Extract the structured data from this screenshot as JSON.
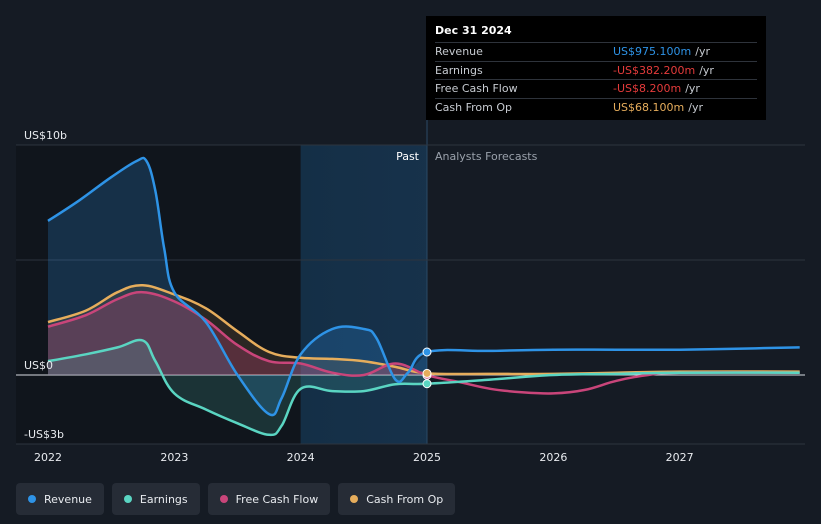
{
  "chart_data": {
    "type": "area",
    "unit": "US$b",
    "ylim": [
      -3,
      10
    ],
    "xlim": [
      2021.8,
      2027.95
    ],
    "y_tick_labels": [
      {
        "value": 10,
        "label": "US$10b"
      },
      {
        "value": 0,
        "label": "US$0"
      },
      {
        "value": -3,
        "label": "-US$3b"
      }
    ],
    "x_ticks": [
      2022,
      2023,
      2024,
      2025,
      2026,
      2027
    ],
    "x_tick_labels": [
      "2022",
      "2023",
      "2024",
      "2025",
      "2026",
      "2027"
    ],
    "past_region": {
      "start": 2024.0,
      "end": 2025.0,
      "label": "Past"
    },
    "forecast_label": "Analysts Forecasts",
    "series": [
      {
        "name": "Revenue",
        "color": "#2e93e6",
        "points": [
          [
            2022.0,
            6.7
          ],
          [
            2022.25,
            7.6
          ],
          [
            2022.5,
            8.6
          ],
          [
            2022.7,
            9.3
          ],
          [
            2022.78,
            9.3
          ],
          [
            2022.85,
            8.0
          ],
          [
            2022.92,
            5.5
          ],
          [
            2023.0,
            3.6
          ],
          [
            2023.25,
            2.3
          ],
          [
            2023.5,
            0.0
          ],
          [
            2023.75,
            -1.7
          ],
          [
            2023.85,
            -1.0
          ],
          [
            2024.0,
            0.9
          ],
          [
            2024.25,
            2.0
          ],
          [
            2024.5,
            2.0
          ],
          [
            2024.6,
            1.6
          ],
          [
            2024.75,
            -0.2
          ],
          [
            2024.85,
            0.1
          ],
          [
            2025.0,
            1.0
          ],
          [
            2025.5,
            1.05
          ],
          [
            2026.0,
            1.1
          ],
          [
            2026.5,
            1.1
          ],
          [
            2027.0,
            1.1
          ],
          [
            2027.5,
            1.15
          ],
          [
            2027.95,
            1.2
          ]
        ]
      },
      {
        "name": "Earnings",
        "color": "#5ad5c2",
        "points": [
          [
            2022.0,
            0.6
          ],
          [
            2022.3,
            0.9
          ],
          [
            2022.55,
            1.2
          ],
          [
            2022.75,
            1.5
          ],
          [
            2022.85,
            0.6
          ],
          [
            2023.0,
            -0.8
          ],
          [
            2023.25,
            -1.5
          ],
          [
            2023.5,
            -2.1
          ],
          [
            2023.75,
            -2.6
          ],
          [
            2023.85,
            -2.2
          ],
          [
            2024.0,
            -0.6
          ],
          [
            2024.25,
            -0.7
          ],
          [
            2024.5,
            -0.7
          ],
          [
            2024.75,
            -0.4
          ],
          [
            2025.0,
            -0.38
          ],
          [
            2025.5,
            -0.2
          ],
          [
            2026.0,
            0.0
          ],
          [
            2026.5,
            0.05
          ],
          [
            2027.0,
            0.1
          ],
          [
            2027.95,
            0.1
          ]
        ]
      },
      {
        "name": "Free Cash Flow",
        "color": "#c9457a",
        "points": [
          [
            2022.0,
            2.1
          ],
          [
            2022.3,
            2.6
          ],
          [
            2022.55,
            3.3
          ],
          [
            2022.75,
            3.6
          ],
          [
            2023.0,
            3.2
          ],
          [
            2023.25,
            2.4
          ],
          [
            2023.5,
            1.3
          ],
          [
            2023.75,
            0.6
          ],
          [
            2024.0,
            0.5
          ],
          [
            2024.25,
            0.1
          ],
          [
            2024.5,
            0.0
          ],
          [
            2024.75,
            0.5
          ],
          [
            2025.0,
            -0.01
          ],
          [
            2025.25,
            -0.3
          ],
          [
            2025.5,
            -0.6
          ],
          [
            2025.75,
            -0.75
          ],
          [
            2026.0,
            -0.8
          ],
          [
            2026.25,
            -0.65
          ],
          [
            2026.5,
            -0.25
          ],
          [
            2026.75,
            0.0
          ],
          [
            2027.0,
            0.1
          ],
          [
            2027.95,
            0.1
          ]
        ]
      },
      {
        "name": "Cash From Op",
        "color": "#e6ad5c",
        "points": [
          [
            2022.0,
            2.3
          ],
          [
            2022.3,
            2.8
          ],
          [
            2022.55,
            3.6
          ],
          [
            2022.75,
            3.9
          ],
          [
            2023.0,
            3.5
          ],
          [
            2023.25,
            2.9
          ],
          [
            2023.5,
            1.9
          ],
          [
            2023.75,
            1.0
          ],
          [
            2024.0,
            0.75
          ],
          [
            2024.25,
            0.7
          ],
          [
            2024.5,
            0.6
          ],
          [
            2024.75,
            0.35
          ],
          [
            2025.0,
            0.07
          ],
          [
            2025.5,
            0.05
          ],
          [
            2026.0,
            0.05
          ],
          [
            2026.5,
            0.1
          ],
          [
            2027.0,
            0.15
          ],
          [
            2027.95,
            0.15
          ]
        ]
      }
    ]
  },
  "tooltip": {
    "date": "Dec 31 2024",
    "rows": [
      {
        "label": "Revenue",
        "value": "US$975.100m",
        "unit": "/yr",
        "color": "#2e93e6"
      },
      {
        "label": "Earnings",
        "value": "-US$382.200m",
        "unit": "/yr",
        "color": "#e53b3b"
      },
      {
        "label": "Free Cash Flow",
        "value": "-US$8.200m",
        "unit": "/yr",
        "color": "#e53b3b"
      },
      {
        "label": "Cash From Op",
        "value": "US$68.100m",
        "unit": "/yr",
        "color": "#e6ad5c"
      }
    ]
  },
  "legend": [
    {
      "label": "Revenue",
      "color": "#2e93e6"
    },
    {
      "label": "Earnings",
      "color": "#5ad5c2"
    },
    {
      "label": "Free Cash Flow",
      "color": "#c9457a"
    },
    {
      "label": "Cash From Op",
      "color": "#e6ad5c"
    }
  ]
}
